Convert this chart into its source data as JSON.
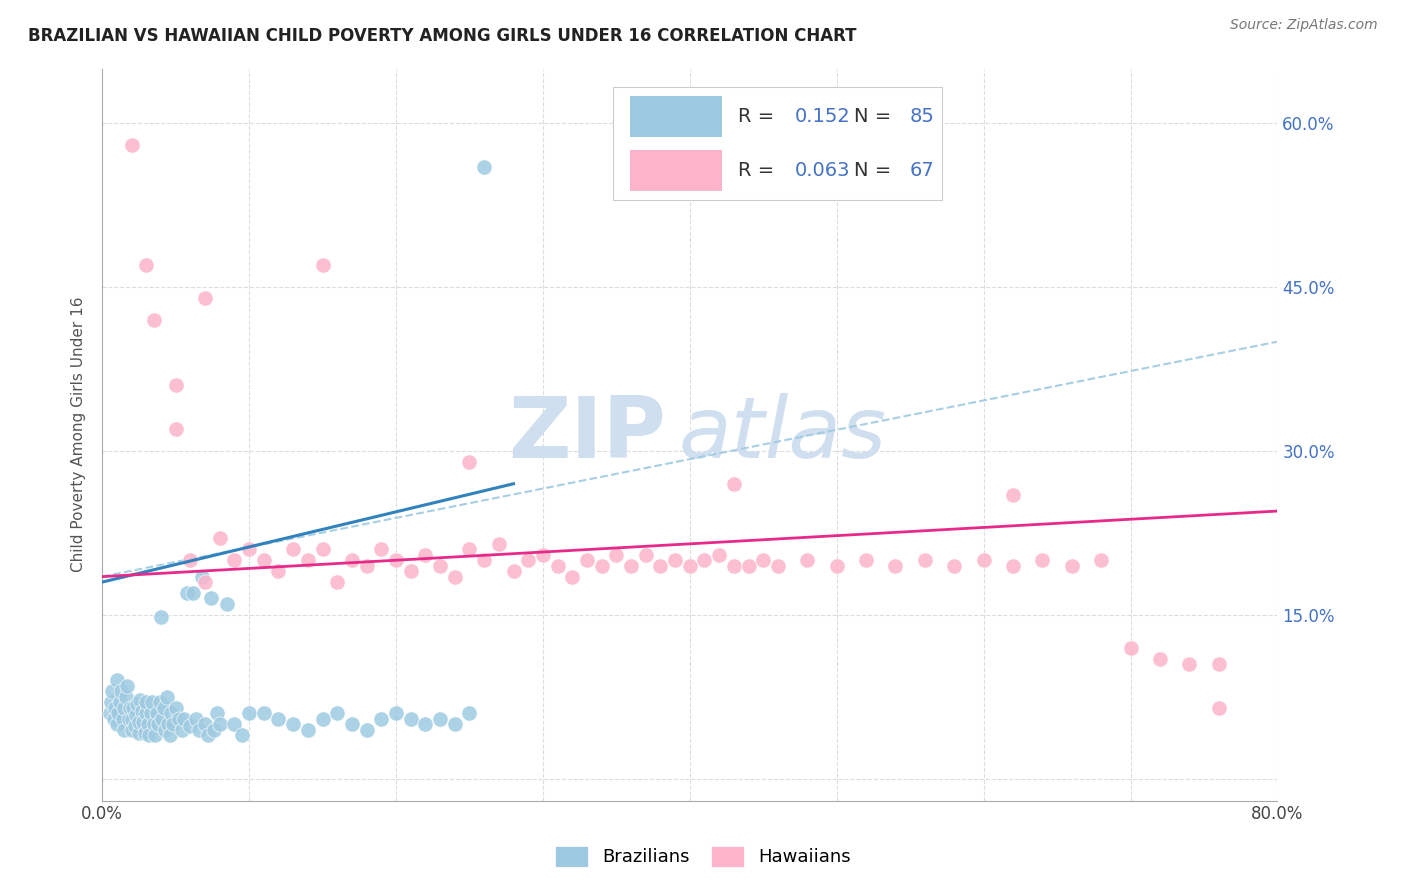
{
  "title": "BRAZILIAN VS HAWAIIAN CHILD POVERTY AMONG GIRLS UNDER 16 CORRELATION CHART",
  "source": "Source: ZipAtlas.com",
  "ylabel": "Child Poverty Among Girls Under 16",
  "xlim": [
    0.0,
    0.8
  ],
  "ylim": [
    -0.02,
    0.65
  ],
  "blue_color": "#9ecae1",
  "pink_color": "#fbb4c9",
  "blue_line_color": "#3182bd",
  "pink_line_color": "#e7298a",
  "dashed_line_color": "#9ecae1",
  "watermark_zip": "ZIP",
  "watermark_atlas": "atlas",
  "watermark_color": "#d0dff0",
  "background_color": "#ffffff",
  "right_tick_color": "#4472c4",
  "brazilians_x": [
    0.005,
    0.006,
    0.007,
    0.008,
    0.009,
    0.01,
    0.01,
    0.011,
    0.012,
    0.013,
    0.014,
    0.015,
    0.015,
    0.016,
    0.017,
    0.018,
    0.019,
    0.02,
    0.02,
    0.021,
    0.022,
    0.023,
    0.024,
    0.025,
    0.025,
    0.026,
    0.027,
    0.028,
    0.029,
    0.03,
    0.03,
    0.031,
    0.032,
    0.033,
    0.034,
    0.035,
    0.036,
    0.037,
    0.038,
    0.039,
    0.04,
    0.041,
    0.042,
    0.043,
    0.044,
    0.045,
    0.046,
    0.047,
    0.048,
    0.05,
    0.052,
    0.054,
    0.056,
    0.058,
    0.06,
    0.062,
    0.064,
    0.066,
    0.068,
    0.07,
    0.072,
    0.074,
    0.076,
    0.078,
    0.08,
    0.085,
    0.09,
    0.095,
    0.1,
    0.11,
    0.12,
    0.13,
    0.14,
    0.15,
    0.16,
    0.17,
    0.18,
    0.19,
    0.2,
    0.21,
    0.22,
    0.23,
    0.24,
    0.25,
    0.26
  ],
  "brazilians_y": [
    0.06,
    0.07,
    0.08,
    0.055,
    0.065,
    0.05,
    0.09,
    0.06,
    0.07,
    0.08,
    0.055,
    0.065,
    0.045,
    0.075,
    0.085,
    0.055,
    0.065,
    0.045,
    0.055,
    0.065,
    0.048,
    0.058,
    0.068,
    0.042,
    0.052,
    0.072,
    0.062,
    0.052,
    0.042,
    0.06,
    0.07,
    0.05,
    0.04,
    0.06,
    0.07,
    0.05,
    0.04,
    0.06,
    0.05,
    0.07,
    0.148,
    0.055,
    0.065,
    0.045,
    0.075,
    0.05,
    0.04,
    0.06,
    0.05,
    0.065,
    0.055,
    0.045,
    0.055,
    0.17,
    0.048,
    0.17,
    0.055,
    0.045,
    0.185,
    0.05,
    0.04,
    0.165,
    0.045,
    0.06,
    0.05,
    0.16,
    0.05,
    0.04,
    0.06,
    0.06,
    0.055,
    0.05,
    0.045,
    0.055,
    0.06,
    0.05,
    0.045,
    0.055,
    0.06,
    0.055,
    0.05,
    0.055,
    0.05,
    0.06,
    0.56
  ],
  "hawaiians_x": [
    0.02,
    0.03,
    0.035,
    0.05,
    0.06,
    0.07,
    0.08,
    0.09,
    0.1,
    0.11,
    0.12,
    0.13,
    0.14,
    0.15,
    0.16,
    0.17,
    0.18,
    0.19,
    0.2,
    0.21,
    0.22,
    0.23,
    0.24,
    0.25,
    0.26,
    0.27,
    0.28,
    0.29,
    0.3,
    0.31,
    0.32,
    0.33,
    0.34,
    0.35,
    0.36,
    0.37,
    0.38,
    0.39,
    0.4,
    0.41,
    0.42,
    0.43,
    0.44,
    0.45,
    0.46,
    0.48,
    0.5,
    0.52,
    0.54,
    0.56,
    0.58,
    0.6,
    0.62,
    0.64,
    0.66,
    0.68,
    0.7,
    0.72,
    0.74,
    0.76,
    0.05,
    0.25,
    0.43,
    0.62,
    0.76,
    0.07,
    0.15
  ],
  "hawaiians_y": [
    0.58,
    0.47,
    0.42,
    0.36,
    0.2,
    0.18,
    0.22,
    0.2,
    0.21,
    0.2,
    0.19,
    0.21,
    0.2,
    0.21,
    0.18,
    0.2,
    0.195,
    0.21,
    0.2,
    0.19,
    0.205,
    0.195,
    0.185,
    0.21,
    0.2,
    0.215,
    0.19,
    0.2,
    0.205,
    0.195,
    0.185,
    0.2,
    0.195,
    0.205,
    0.195,
    0.205,
    0.195,
    0.2,
    0.195,
    0.2,
    0.205,
    0.195,
    0.195,
    0.2,
    0.195,
    0.2,
    0.195,
    0.2,
    0.195,
    0.2,
    0.195,
    0.2,
    0.195,
    0.2,
    0.195,
    0.2,
    0.12,
    0.11,
    0.105,
    0.105,
    0.32,
    0.29,
    0.27,
    0.26,
    0.065,
    0.44,
    0.47
  ],
  "braz_trend_x": [
    0.0,
    0.28
  ],
  "braz_trend_y": [
    0.18,
    0.27
  ],
  "haw_trend_x": [
    0.0,
    0.8
  ],
  "haw_trend_y": [
    0.185,
    0.245
  ],
  "dash_trend_x": [
    0.0,
    0.8
  ],
  "dash_trend_y": [
    0.185,
    0.4
  ]
}
